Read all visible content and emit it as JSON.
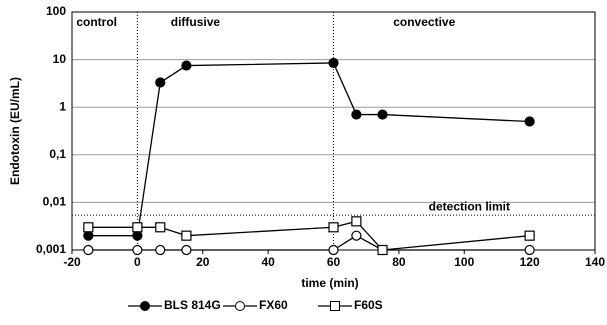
{
  "chart_data": {
    "type": "line",
    "y_label": "Endotoxin (EU/mL)",
    "x_label": "time (min)",
    "log_y": true,
    "grid": true,
    "xlim": [
      -20,
      140
    ],
    "xticks": [
      -20,
      0,
      20,
      40,
      60,
      80,
      100,
      120,
      140
    ],
    "ylim": [
      0.001,
      100
    ],
    "yticks": [
      {
        "value": 0.001,
        "label": "0,001"
      },
      {
        "value": 0.01,
        "label": "0,01"
      },
      {
        "value": 0.1,
        "label": "0,1"
      },
      1,
      10,
      100
    ],
    "phases": [
      {
        "label": "control",
        "start": -20
      },
      {
        "label": "diffusive",
        "start": 0
      },
      {
        "label": "convective",
        "start": 60
      }
    ],
    "detection_limit": {
      "label": "detection limit",
      "value": 0.0054
    },
    "series": [
      {
        "name": "BLS 814G",
        "color": "#000000",
        "marker": "filled-circle",
        "x": [
          -15,
          0,
          7,
          15,
          60,
          67,
          75,
          120
        ],
        "values": [
          0.002,
          0.002,
          3.3,
          7.5,
          8.5,
          0.7,
          0.7,
          0.5
        ]
      },
      {
        "name": "FX60",
        "color": "#000000",
        "marker": "open-circle",
        "x": [
          -15,
          0,
          7,
          15,
          60,
          67,
          75,
          120
        ],
        "values": [
          0.001,
          0.001,
          0.001,
          0.001,
          0.001,
          0.002,
          0.001,
          0.001
        ]
      },
      {
        "name": "F60S",
        "color": "#000000",
        "marker": "open-square",
        "x": [
          -15,
          0,
          7,
          15,
          60,
          67,
          75,
          120
        ],
        "values": [
          0.003,
          0.003,
          0.003,
          0.002,
          0.003,
          0.004,
          0.001,
          0.002
        ]
      }
    ]
  }
}
